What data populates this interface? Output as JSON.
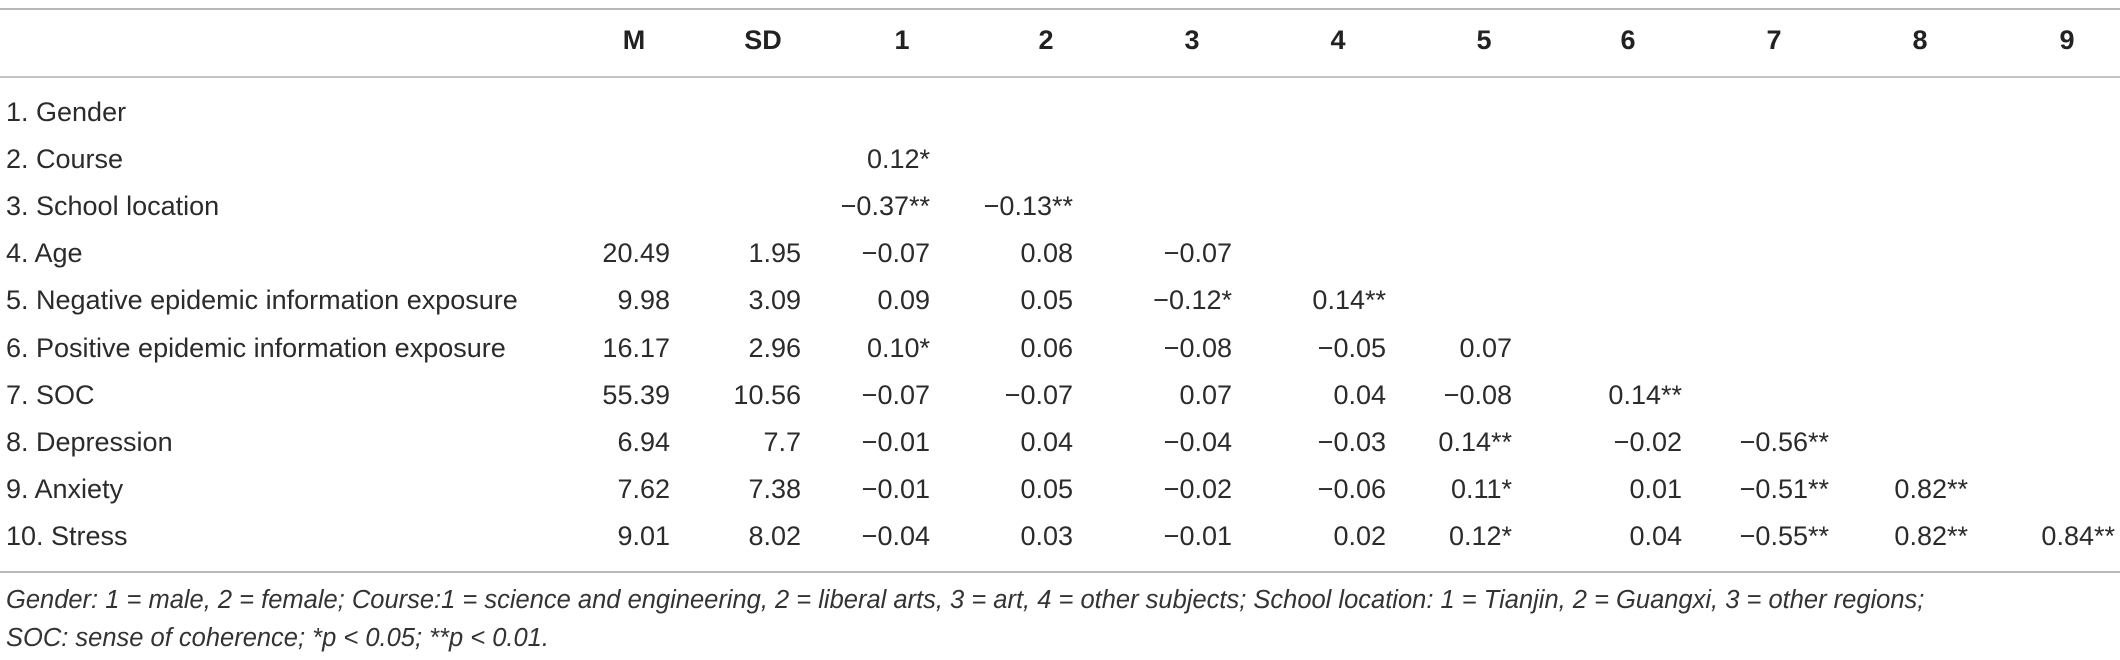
{
  "table": {
    "headers": [
      "",
      "M",
      "SD",
      "1",
      "2",
      "3",
      "4",
      "5",
      "6",
      "7",
      "8",
      "9"
    ],
    "rows": [
      {
        "label": "1. Gender",
        "cells": [
          "",
          "",
          "",
          "",
          "",
          "",
          "",
          "",
          "",
          "",
          ""
        ]
      },
      {
        "label": "2. Course",
        "cells": [
          "",
          "",
          "0.12*",
          "",
          "",
          "",
          "",
          "",
          "",
          "",
          ""
        ]
      },
      {
        "label": "3. School location",
        "cells": [
          "",
          "",
          "−0.37**",
          "−0.13**",
          "",
          "",
          "",
          "",
          "",
          "",
          ""
        ]
      },
      {
        "label": "4. Age",
        "cells": [
          "20.49",
          "1.95",
          "−0.07",
          "0.08",
          "−0.07",
          "",
          "",
          "",
          "",
          "",
          ""
        ]
      },
      {
        "label": "5. Negative epidemic information exposure",
        "cells": [
          "9.98",
          "3.09",
          "0.09",
          "0.05",
          "−0.12*",
          "0.14**",
          "",
          "",
          "",
          "",
          ""
        ]
      },
      {
        "label": "6. Positive epidemic information exposure",
        "cells": [
          "16.17",
          "2.96",
          "0.10*",
          "0.06",
          "−0.08",
          "−0.05",
          "0.07",
          "",
          "",
          "",
          ""
        ]
      },
      {
        "label": "7. SOC",
        "cells": [
          "55.39",
          "10.56",
          "−0.07",
          "−0.07",
          "0.07",
          "0.04",
          "−0.08",
          "0.14**",
          "",
          "",
          ""
        ]
      },
      {
        "label": "8. Depression",
        "cells": [
          "6.94",
          "7.7",
          "−0.01",
          "0.04",
          "−0.04",
          "−0.03",
          "0.14**",
          "−0.02",
          "−0.56**",
          "",
          ""
        ]
      },
      {
        "label": "9. Anxiety",
        "cells": [
          "7.62",
          "7.38",
          "−0.01",
          "0.05",
          "−0.02",
          "−0.06",
          "0.11*",
          "0.01",
          "−0.51**",
          "0.82**",
          ""
        ]
      },
      {
        "label": "10. Stress",
        "cells": [
          "9.01",
          "8.02",
          "−0.04",
          "0.03",
          "−0.01",
          "0.02",
          "0.12*",
          "0.04",
          "−0.55**",
          "0.82**",
          "0.84**"
        ]
      }
    ]
  },
  "footnote": {
    "line1": "Gender: 1 = male, 2 = female; Course:1 = science and engineering, 2 = liberal arts, 3 = art, 4 = other subjects; School location: 1 = Tianjin, 2 = Guangxi, 3 = other regions;",
    "line2": "SOC: sense of coherence; *p < 0.05; **p < 0.01."
  }
}
